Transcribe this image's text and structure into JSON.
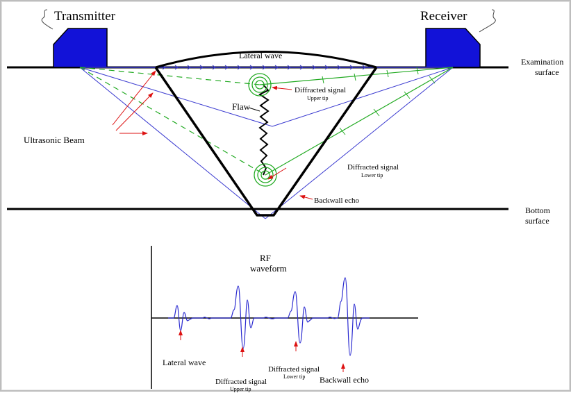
{
  "labels": {
    "transmitter": "Transmitter",
    "receiver": "Receiver",
    "lateral_wave_top": "Lateral wave",
    "examination_surface_1": "Examination",
    "examination_surface_2": "surface",
    "flaw": "Flaw",
    "diffracted_upper": "Diffracted signal",
    "upper_tip": "Upper tip",
    "diffracted_lower": "Diffracted signal",
    "lower_tip": "Lower tip",
    "ultrasonic_beam": "Ultrasonic Beam",
    "backwall_echo_top": "Backwall echo",
    "bottom_surface_1": "Bottom",
    "bottom_surface_2": "surface"
  },
  "waveform": {
    "title_1": "RF",
    "title_2": "waveform",
    "lateral_wave": "Lateral wave",
    "diffracted_upper": "Diffracted signal",
    "upper_tip": "Upper tip",
    "diffracted_lower": "Diffracted signal",
    "lower_tip": "Lower tip",
    "backwall_echo": "Backwall echo"
  },
  "colors": {
    "probe": "#1414d0",
    "beam": "#3a3ad0",
    "diffracted": "#22aa22",
    "annotation": "#dd1111",
    "waveform": "#2a2ad0"
  }
}
